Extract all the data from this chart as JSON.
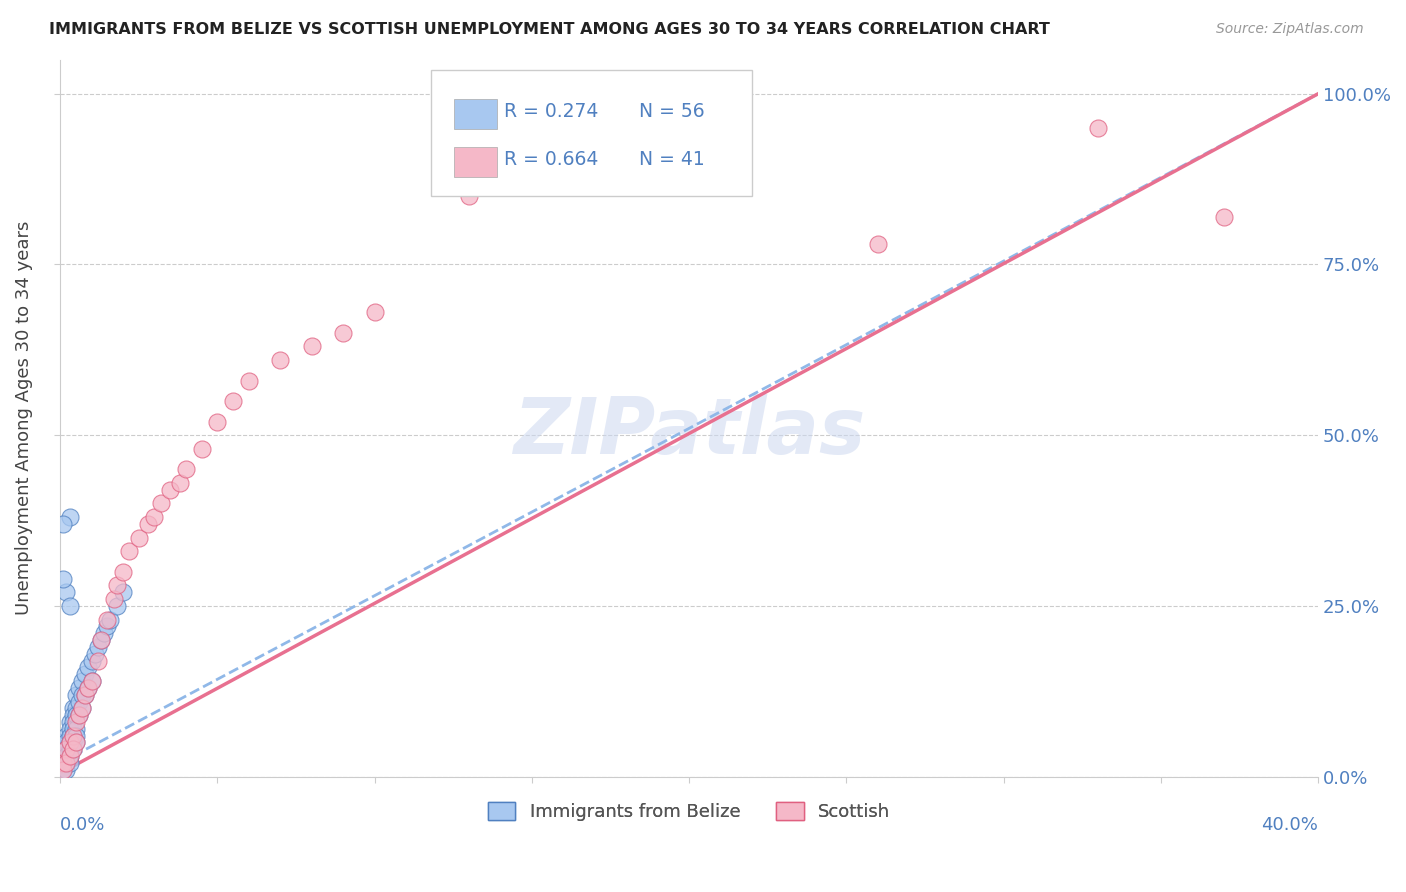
{
  "title": "IMMIGRANTS FROM BELIZE VS SCOTTISH UNEMPLOYMENT AMONG AGES 30 TO 34 YEARS CORRELATION CHART",
  "source": "Source: ZipAtlas.com",
  "xlabel_bottom_left": "0.0%",
  "xlabel_bottom_right": "40.0%",
  "ylabel": "Unemployment Among Ages 30 to 34 years",
  "ytick_labels": [
    "0.0%",
    "25.0%",
    "50.0%",
    "75.0%",
    "100.0%"
  ],
  "ytick_values": [
    0.0,
    0.25,
    0.5,
    0.75,
    1.0
  ],
  "xtick_values": [
    0.0,
    0.05,
    0.1,
    0.15,
    0.2,
    0.25,
    0.3,
    0.35,
    0.4
  ],
  "xmax": 0.4,
  "ymax": 1.05,
  "legend_R1": "R = 0.274",
  "legend_N1": "N = 56",
  "legend_R2": "R = 0.664",
  "legend_N2": "N = 41",
  "legend_label1": "Immigrants from Belize",
  "legend_label2": "Scottish",
  "color_blue": "#a8c8f0",
  "color_pink": "#f5b8c8",
  "color_blue_dark": "#5080c0",
  "color_pink_dark": "#e06080",
  "color_trend_blue": "#90b8e8",
  "color_trend_pink": "#e87090",
  "watermark": "ZIPatlas",
  "background_color": "#ffffff",
  "blue_points_x": [
    0.001,
    0.001,
    0.001,
    0.001,
    0.001,
    0.002,
    0.002,
    0.002,
    0.002,
    0.002,
    0.002,
    0.003,
    0.003,
    0.003,
    0.003,
    0.003,
    0.003,
    0.003,
    0.004,
    0.004,
    0.004,
    0.004,
    0.004,
    0.004,
    0.004,
    0.005,
    0.005,
    0.005,
    0.005,
    0.005,
    0.005,
    0.006,
    0.006,
    0.006,
    0.007,
    0.007,
    0.007,
    0.008,
    0.008,
    0.009,
    0.009,
    0.01,
    0.01,
    0.011,
    0.012,
    0.013,
    0.014,
    0.015,
    0.016,
    0.018,
    0.02,
    0.002,
    0.003,
    0.003,
    0.001,
    0.001
  ],
  "blue_points_y": [
    0.05,
    0.04,
    0.03,
    0.02,
    0.01,
    0.06,
    0.05,
    0.04,
    0.03,
    0.02,
    0.01,
    0.08,
    0.07,
    0.06,
    0.05,
    0.04,
    0.03,
    0.02,
    0.1,
    0.09,
    0.08,
    0.07,
    0.06,
    0.05,
    0.04,
    0.12,
    0.1,
    0.09,
    0.07,
    0.06,
    0.05,
    0.13,
    0.11,
    0.09,
    0.14,
    0.12,
    0.1,
    0.15,
    0.12,
    0.16,
    0.13,
    0.17,
    0.14,
    0.18,
    0.19,
    0.2,
    0.21,
    0.22,
    0.23,
    0.25,
    0.27,
    0.27,
    0.25,
    0.38,
    0.37,
    0.29
  ],
  "pink_points_x": [
    0.001,
    0.001,
    0.002,
    0.002,
    0.003,
    0.003,
    0.004,
    0.004,
    0.005,
    0.005,
    0.006,
    0.007,
    0.008,
    0.009,
    0.01,
    0.012,
    0.013,
    0.015,
    0.017,
    0.018,
    0.02,
    0.022,
    0.025,
    0.028,
    0.03,
    0.032,
    0.035,
    0.038,
    0.04,
    0.045,
    0.05,
    0.055,
    0.06,
    0.07,
    0.08,
    0.09,
    0.1,
    0.13,
    0.26,
    0.33,
    0.37
  ],
  "pink_points_y": [
    0.02,
    0.01,
    0.04,
    0.02,
    0.05,
    0.03,
    0.06,
    0.04,
    0.08,
    0.05,
    0.09,
    0.1,
    0.12,
    0.13,
    0.14,
    0.17,
    0.2,
    0.23,
    0.26,
    0.28,
    0.3,
    0.33,
    0.35,
    0.37,
    0.38,
    0.4,
    0.42,
    0.43,
    0.45,
    0.48,
    0.52,
    0.55,
    0.58,
    0.61,
    0.63,
    0.65,
    0.68,
    0.85,
    0.78,
    0.95,
    0.82
  ],
  "blue_trend_x0": 0.0,
  "blue_trend_y0": 0.02,
  "blue_trend_x1": 0.4,
  "blue_trend_y1": 1.0,
  "pink_trend_x0": 0.0,
  "pink_trend_y0": 0.005,
  "pink_trend_x1": 0.4,
  "pink_trend_y1": 1.0
}
